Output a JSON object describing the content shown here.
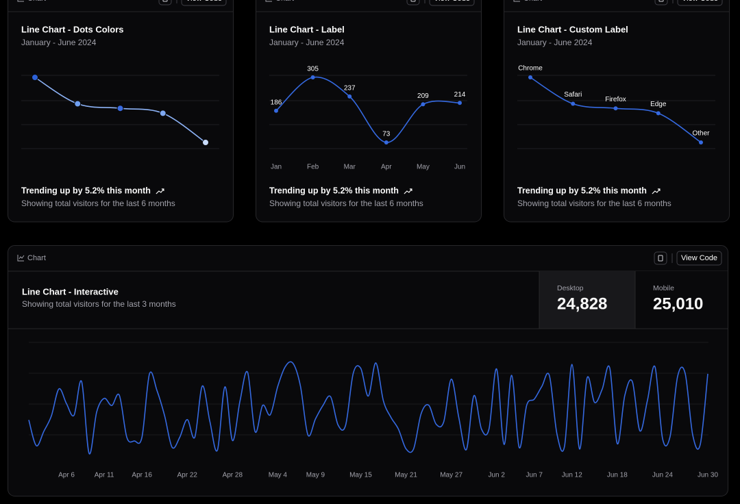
{
  "cards": [
    {
      "header": "Chart",
      "button": "View Code",
      "title": "Line Chart - Dots Colors",
      "subtitle": "January - June 2024",
      "chart": {
        "type": "line",
        "values": [
          275,
          200,
          187,
          173,
          90
        ],
        "color": "#8db3f7",
        "point_colors": [
          "#2d62d8",
          "#6f9ff0",
          "#3a6be0",
          "#7fa9f2",
          "#c9dcfb"
        ]
      },
      "footer": {
        "trend": "Trending up by 5.2% this month",
        "note": "Showing total visitors for the last 6 months"
      }
    },
    {
      "header": "Chart",
      "button": "View Code",
      "title": "Line Chart - Label",
      "subtitle": "January - June 2024",
      "chart": {
        "type": "line",
        "categories": [
          "Jan",
          "Feb",
          "Mar",
          "Apr",
          "May",
          "Jun"
        ],
        "values": [
          186,
          305,
          237,
          73,
          209,
          214
        ],
        "color": "#3569e0",
        "show_value_labels": true
      },
      "footer": {
        "trend": "Trending up by 5.2% this month",
        "note": "Showing total visitors for the last 6 months"
      }
    },
    {
      "header": "Chart",
      "button": "View Code",
      "title": "Line Chart - Custom Label",
      "subtitle": "January - June 2024",
      "chart": {
        "type": "line",
        "categories": [
          "Chrome",
          "Safari",
          "Firefox",
          "Edge",
          "Other"
        ],
        "values": [
          275,
          200,
          187,
          173,
          90
        ],
        "color": "#3569e0",
        "category_labels_on_points": true
      },
      "footer": {
        "trend": "Trending up by 5.2% this month",
        "note": "Showing total visitors for the last 6 months"
      }
    }
  ],
  "interactive": {
    "header": "Chart",
    "button": "View Code",
    "title": "Line Chart - Interactive",
    "subtitle": "Showing total visitors for the last 3 months",
    "stats": [
      {
        "label": "Desktop",
        "value": "24,828"
      },
      {
        "label": "Mobile",
        "value": "25,010"
      }
    ],
    "chart": {
      "type": "line",
      "color": "#3569e0",
      "categories": [
        null,
        null,
        null,
        null,
        null,
        "Apr 6",
        null,
        null,
        null,
        null,
        "Apr 11",
        null,
        null,
        null,
        null,
        "Apr 16",
        null,
        null,
        null,
        null,
        null,
        "Apr 22",
        null,
        null,
        null,
        null,
        null,
        "Apr 28",
        null,
        null,
        null,
        null,
        null,
        "May 4",
        null,
        null,
        null,
        null,
        "May 9",
        null,
        null,
        null,
        null,
        null,
        "May 15",
        null,
        null,
        null,
        null,
        null,
        "May 21",
        null,
        null,
        null,
        null,
        null,
        "May 27",
        null,
        null,
        null,
        null,
        null,
        "Jun 2",
        null,
        null,
        null,
        null,
        "Jun 7",
        null,
        null,
        null,
        null,
        "Jun 12",
        null,
        null,
        null,
        null,
        null,
        "Jun 18",
        null,
        null,
        null,
        null,
        null,
        "Jun 24",
        null,
        null,
        null,
        null,
        null,
        "Jun 30"
      ],
      "values": [
        222,
        97,
        167,
        242,
        373,
        301,
        245,
        409,
        59,
        261,
        327,
        292,
        342,
        137,
        120,
        138,
        446,
        364,
        243,
        89,
        137,
        224,
        138,
        387,
        215,
        75,
        383,
        122,
        315,
        454,
        165,
        293,
        247,
        385,
        481,
        498,
        388,
        149,
        227,
        293,
        335,
        197,
        197,
        448,
        473,
        338,
        499,
        315,
        235,
        177,
        82,
        81,
        252,
        294,
        201,
        213,
        420,
        233,
        78,
        340,
        178,
        178,
        470,
        103,
        439,
        88,
        294,
        323,
        385,
        438,
        155,
        92,
        492,
        81,
        426,
        307,
        371,
        475,
        107,
        341,
        408,
        169,
        317,
        480,
        132,
        141,
        434,
        448,
        149,
        103,
        446
      ]
    }
  }
}
